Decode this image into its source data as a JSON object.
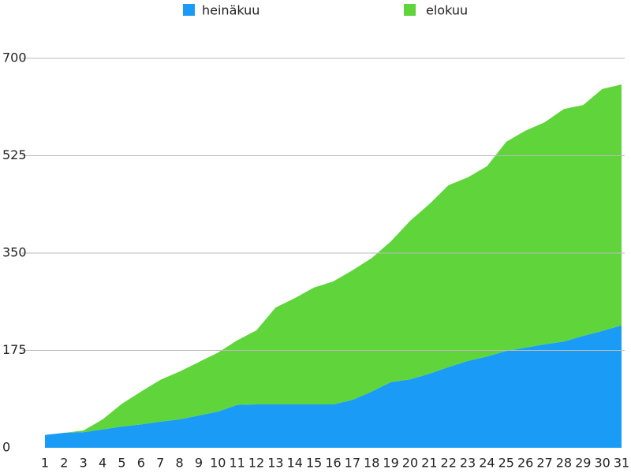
{
  "chart_data": {
    "type": "area",
    "stacked": true,
    "categories": [
      "1",
      "2",
      "3",
      "4",
      "5",
      "6",
      "7",
      "8",
      "9",
      "10",
      "11",
      "12",
      "13",
      "14",
      "15",
      "16",
      "17",
      "18",
      "19",
      "20",
      "21",
      "22",
      "23",
      "24",
      "25",
      "26",
      "27",
      "28",
      "29",
      "30",
      "31"
    ],
    "series": [
      {
        "name": "heinäkuu",
        "color": "#1a9bf5",
        "values": [
          23,
          27,
          28,
          33,
          38,
          42,
          47,
          51,
          58,
          65,
          77,
          78,
          78,
          78,
          78,
          78,
          86,
          101,
          118,
          123,
          133,
          145,
          156,
          164,
          174,
          180,
          186,
          191,
          201,
          210,
          220
        ]
      },
      {
        "name": "elokuu",
        "color": "#5fd43b",
        "values": [
          0,
          0,
          3,
          18,
          41,
          59,
          75,
          86,
          96,
          106,
          116,
          133,
          174,
          191,
          210,
          221,
          233,
          240,
          253,
          285,
          305,
          327,
          330,
          342,
          376,
          390,
          399,
          418,
          415,
          435,
          433
        ]
      }
    ],
    "ylim": [
      0,
      700
    ],
    "yticks": [
      0,
      175,
      350,
      525,
      700
    ],
    "grid": true
  }
}
